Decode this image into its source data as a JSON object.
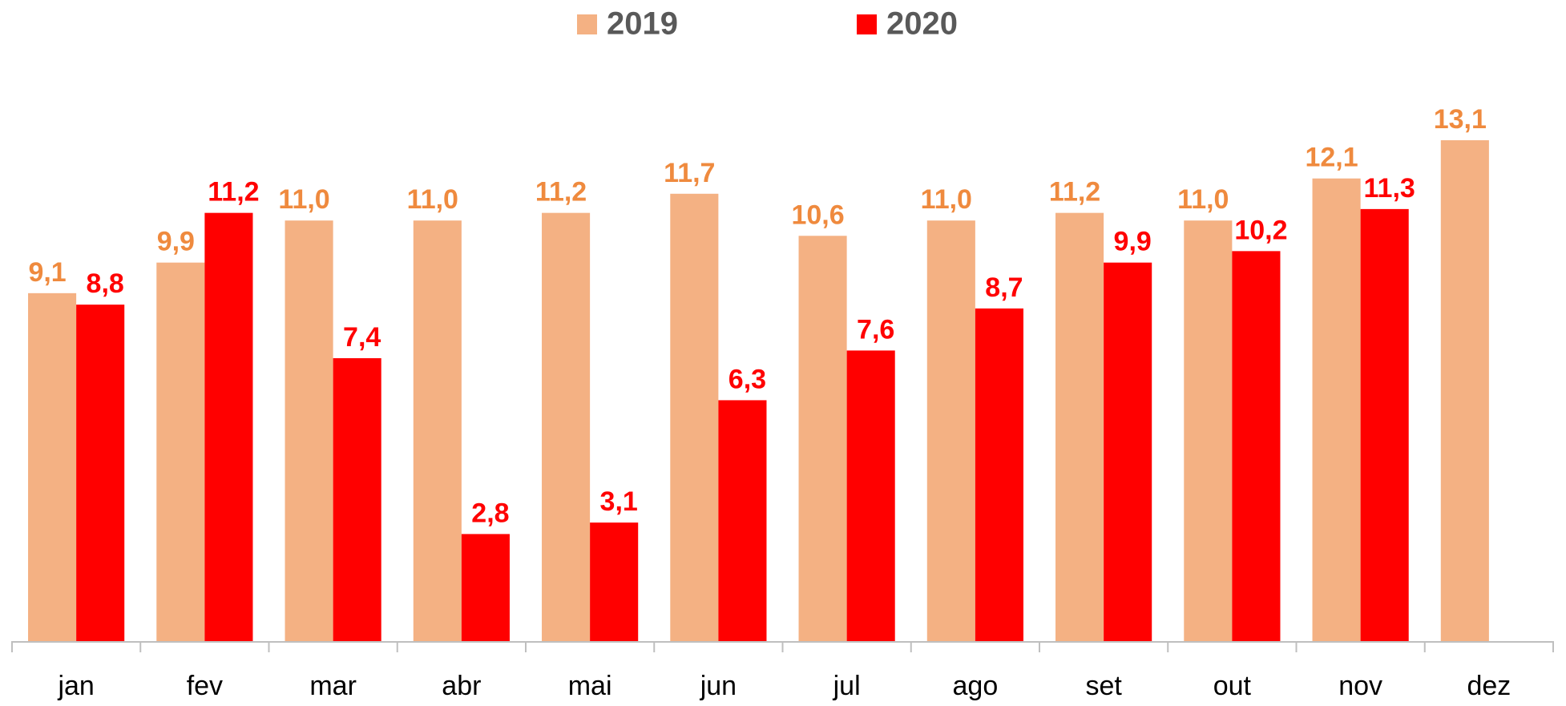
{
  "chart_data": {
    "type": "bar",
    "categories": [
      "jan",
      "fev",
      "mar",
      "abr",
      "mai",
      "jun",
      "jul",
      "ago",
      "set",
      "out",
      "nov",
      "dez"
    ],
    "series": [
      {
        "name": "2019",
        "color": "#f4b183",
        "label_color": "#ef8a3e",
        "values": [
          9.1,
          9.9,
          11.0,
          11.0,
          11.2,
          11.7,
          10.6,
          11.0,
          11.2,
          11.0,
          12.1,
          13.1
        ],
        "value_labels": [
          "9,1",
          "9,9",
          "11,0",
          "11,0",
          "11,2",
          "11,7",
          "10,6",
          "11,0",
          "11,2",
          "11,0",
          "12,1",
          "13,1"
        ]
      },
      {
        "name": "2020",
        "color": "#ff0000",
        "label_color": "#ff0000",
        "values": [
          8.8,
          11.2,
          7.4,
          2.8,
          3.1,
          6.3,
          7.6,
          8.7,
          9.9,
          10.2,
          11.3,
          null
        ],
        "value_labels": [
          "8,8",
          "11,2",
          "7,4",
          "2,8",
          "3,1",
          "6,3",
          "7,6",
          "8,7",
          "9,9",
          "10,2",
          "11,3",
          null
        ]
      }
    ],
    "legend": "top"
  }
}
